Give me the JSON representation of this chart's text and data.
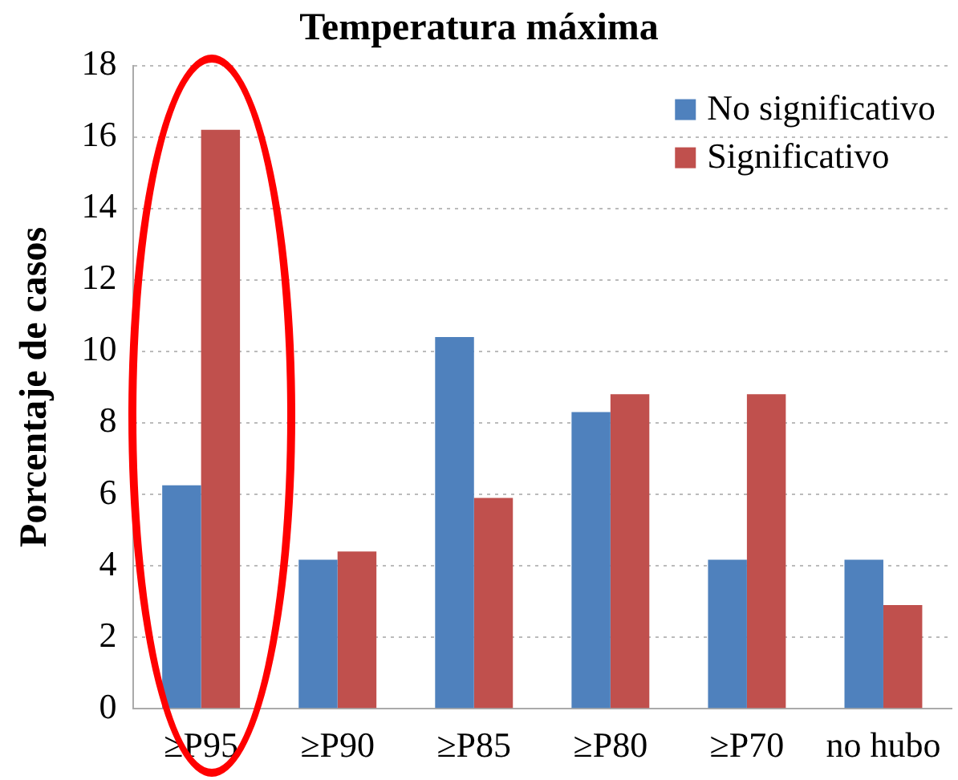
{
  "chart_data": {
    "type": "bar",
    "title": "Temperatura máxima",
    "ylabel": "Porcentaje de casos",
    "categories": [
      "≥P95",
      "≥P90",
      "≥P85",
      "≥P80",
      "≥P70",
      "no hubo"
    ],
    "series": [
      {
        "name": "No significativo",
        "color": "#4f81bd",
        "values": [
          6.25,
          4.17,
          10.4,
          8.3,
          4.17,
          4.17
        ]
      },
      {
        "name": "Significativo",
        "color": "#c0504d",
        "values": [
          16.2,
          4.4,
          5.9,
          8.8,
          8.8,
          2.9
        ]
      }
    ],
    "ylim": [
      0,
      18
    ],
    "yticks": [
      0,
      2,
      4,
      6,
      8,
      10,
      12,
      14,
      16,
      18
    ],
    "grid": "y",
    "legend": "top right"
  }
}
